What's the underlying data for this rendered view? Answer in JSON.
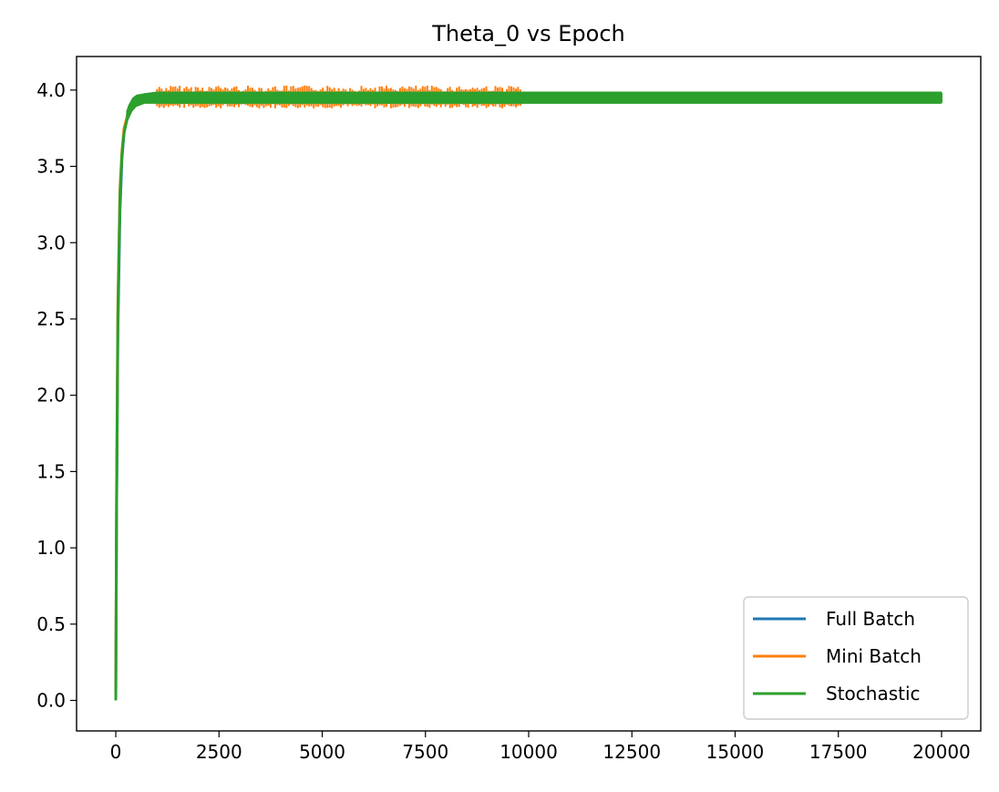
{
  "chart_data": {
    "type": "line",
    "title": "Theta_0 vs Epoch",
    "xlabel": "",
    "ylabel": "",
    "xlim": [
      -950,
      20950
    ],
    "ylim": [
      -0.2,
      4.22
    ],
    "xticks": [
      0,
      2500,
      5000,
      7500,
      10000,
      12500,
      15000,
      17500,
      20000
    ],
    "xtick_labels": [
      "0",
      "2500",
      "5000",
      "7500",
      "10000",
      "12500",
      "15000",
      "17500",
      "20000"
    ],
    "yticks": [
      0.0,
      0.5,
      1.0,
      1.5,
      2.0,
      2.5,
      3.0,
      3.5,
      4.0
    ],
    "ytick_labels": [
      "0.0",
      "0.5",
      "1.0",
      "1.5",
      "2.0",
      "2.5",
      "3.0",
      "3.5",
      "4.0"
    ],
    "grid": false,
    "legend_position": "bottom-right",
    "series": [
      {
        "name": "Full Batch",
        "color": "#1f77b4",
        "x": [
          0,
          20,
          50,
          100,
          150,
          200,
          300,
          400,
          500,
          700,
          1000,
          20000
        ],
        "y": [
          0.0,
          1.2,
          2.4,
          3.2,
          3.55,
          3.72,
          3.86,
          3.92,
          3.95,
          3.97,
          3.98,
          3.98
        ]
      },
      {
        "name": "Mini Batch",
        "color": "#ff7f0e",
        "x": [
          0,
          20,
          50,
          100,
          150,
          200,
          300,
          400,
          500,
          700,
          1000,
          9800,
          20000
        ],
        "y": [
          0.0,
          1.4,
          2.6,
          3.35,
          3.6,
          3.75,
          3.85,
          3.9,
          3.92,
          3.93,
          3.95,
          3.95,
          3.95
        ],
        "noise_band": [
          3.88,
          4.03
        ],
        "noise_range": [
          1000,
          9800
        ]
      },
      {
        "name": "Stochastic",
        "color": "#2ca02c",
        "x": [
          0,
          20,
          50,
          100,
          150,
          200,
          300,
          400,
          500,
          700,
          1000,
          20000
        ],
        "y": [
          0.0,
          1.3,
          2.5,
          3.3,
          3.58,
          3.72,
          3.84,
          3.89,
          3.91,
          3.93,
          3.95,
          3.95
        ],
        "band": [
          3.91,
          3.99
        ]
      }
    ]
  }
}
